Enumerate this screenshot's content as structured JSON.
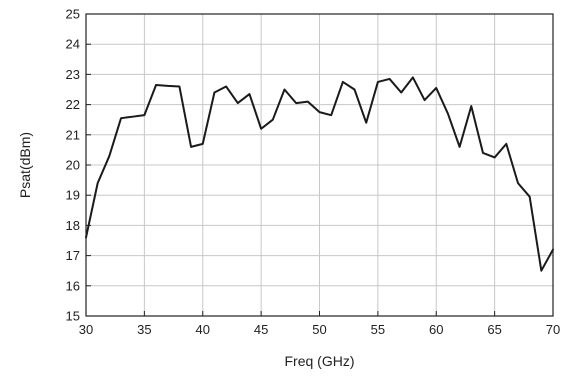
{
  "chart_data": {
    "type": "line",
    "xlabel": "Freq (GHz)",
    "ylabel": "Psat(dBm)",
    "xlim": [
      30,
      70
    ],
    "ylim": [
      15,
      25
    ],
    "xticks": [
      30,
      35,
      40,
      45,
      50,
      55,
      60,
      65,
      70
    ],
    "yticks": [
      15,
      16,
      17,
      18,
      19,
      20,
      21,
      22,
      23,
      24,
      25
    ],
    "grid": true,
    "line_color": "#1a1a1a",
    "series": [
      {
        "x": [
          30,
          31,
          32,
          33,
          34,
          35,
          36,
          37,
          38,
          39,
          40,
          41,
          42,
          43,
          44,
          45,
          46,
          47,
          48,
          49,
          50,
          51,
          52,
          53,
          54,
          55,
          56,
          57,
          58,
          59,
          60,
          61,
          62,
          63,
          64,
          65,
          66,
          67,
          68,
          69,
          70
        ],
        "values": [
          17.6,
          19.4,
          20.3,
          21.55,
          21.6,
          21.65,
          22.65,
          22.62,
          22.6,
          20.6,
          20.7,
          22.4,
          22.6,
          22.05,
          22.35,
          21.2,
          21.5,
          22.5,
          22.05,
          22.1,
          21.75,
          21.65,
          22.75,
          22.5,
          21.4,
          22.75,
          22.85,
          22.4,
          22.9,
          22.15,
          22.55,
          21.7,
          20.6,
          21.95,
          20.4,
          20.25,
          20.7,
          19.4,
          18.95,
          16.5,
          17.2
        ]
      }
    ]
  }
}
